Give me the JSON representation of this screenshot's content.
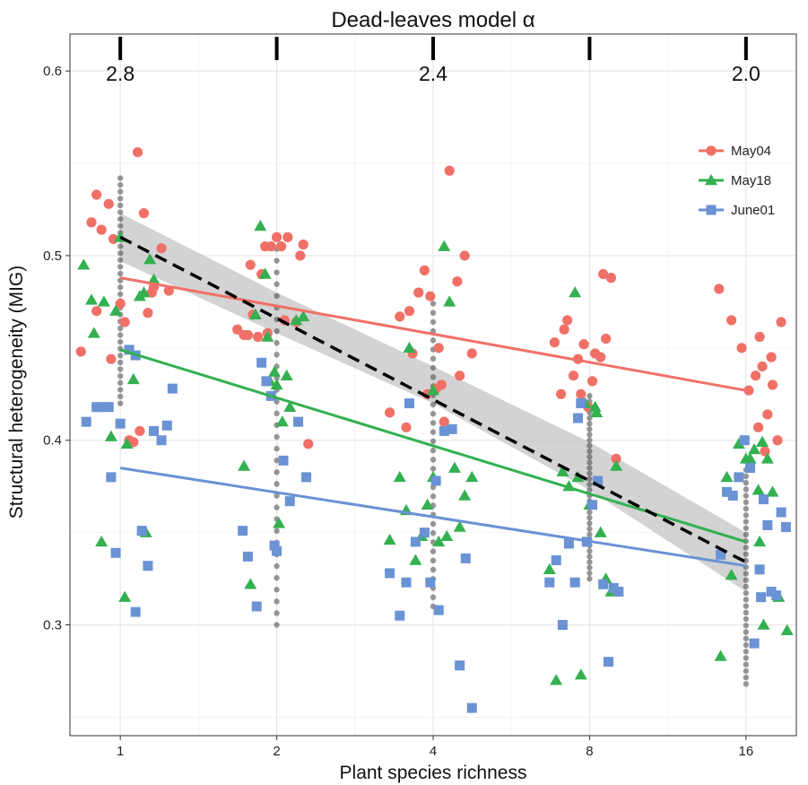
{
  "chart_data": {
    "type": "scatter",
    "title": "Dead-leaves model α",
    "xlabel": "Plant species richness",
    "ylabel": "Structural heterogeneity (MIG)",
    "x_scale": "log2",
    "xlim": [
      0.8,
      20
    ],
    "ylim": [
      0.24,
      0.62
    ],
    "x_ticks": [
      1,
      2,
      4,
      8,
      16
    ],
    "x_tick_labels": [
      "1",
      "2",
      "4",
      "8",
      "16"
    ],
    "y_ticks": [
      0.3,
      0.4,
      0.5,
      0.6
    ],
    "y_tick_labels": [
      "0.3",
      "0.4",
      "0.5",
      "0.6"
    ],
    "top_axis": {
      "label": "Dead-leaves model α",
      "tick_labels": [
        "2.8",
        "2.4",
        "2.0"
      ],
      "labeled_at_x": [
        1,
        4,
        16
      ],
      "all_ticks_at_x": [
        1,
        2,
        4,
        8,
        16
      ]
    },
    "grid": true,
    "background": "#ffffff",
    "legend": {
      "position": "top-right",
      "entries": [
        "May04",
        "May18",
        "June01"
      ]
    },
    "colors": {
      "May04": "#f07068",
      "May18": "#33b050",
      "June01": "#6a92d4",
      "overall_points": "#444444",
      "overall_fit": "#000000",
      "ribbon": "#c8c8c8"
    },
    "series": [
      {
        "name": "May04",
        "marker": "circle",
        "x": [
          0.84,
          0.88,
          0.9,
          0.92,
          0.95,
          0.97,
          1.0,
          1.02,
          1.04,
          1.06,
          1.08,
          1.11,
          1.13,
          1.16,
          1.2,
          1.24,
          0.96,
          0.9,
          1.09,
          1.15,
          1.68,
          1.73,
          1.76,
          1.8,
          1.84,
          1.87,
          1.92,
          1.95,
          2.0,
          2.04,
          2.1,
          2.18,
          2.25,
          2.3,
          1.78,
          1.9,
          2.07,
          2.22,
          3.3,
          3.45,
          3.55,
          3.65,
          3.75,
          3.85,
          3.95,
          4.05,
          4.1,
          4.2,
          4.3,
          4.45,
          4.6,
          4.75,
          3.6,
          3.9,
          4.15,
          4.5,
          6.85,
          7.05,
          7.25,
          7.45,
          7.6,
          7.8,
          7.95,
          8.2,
          8.4,
          8.6,
          8.8,
          9.0,
          7.15,
          7.7,
          8.1,
          8.5,
          14.2,
          15.0,
          15.7,
          16.2,
          16.7,
          17.2,
          17.6,
          18.0,
          18.4,
          16.9,
          17.4,
          17.9,
          18.7,
          17.0
        ],
        "y": [
          0.448,
          0.518,
          0.533,
          0.514,
          0.528,
          0.509,
          0.474,
          0.464,
          0.4,
          0.399,
          0.556,
          0.523,
          0.469,
          0.483,
          0.504,
          0.481,
          0.444,
          0.47,
          0.405,
          0.48,
          0.46,
          0.457,
          0.457,
          0.468,
          0.456,
          0.49,
          0.458,
          0.505,
          0.51,
          0.505,
          0.51,
          0.464,
          0.506,
          0.398,
          0.495,
          0.505,
          0.465,
          0.5,
          0.415,
          0.467,
          0.407,
          0.447,
          0.48,
          0.492,
          0.478,
          0.428,
          0.45,
          0.41,
          0.546,
          0.486,
          0.5,
          0.447,
          0.47,
          0.425,
          0.43,
          0.435,
          0.453,
          0.425,
          0.465,
          0.435,
          0.444,
          0.452,
          0.418,
          0.447,
          0.445,
          0.455,
          0.488,
          0.39,
          0.46,
          0.425,
          0.432,
          0.49,
          0.482,
          0.465,
          0.45,
          0.427,
          0.435,
          0.44,
          0.414,
          0.43,
          0.4,
          0.407,
          0.394,
          0.445,
          0.464,
          0.456
        ],
        "fit_line": {
          "x": [
            1,
            16
          ],
          "y": [
            0.488,
            0.427
          ]
        }
      },
      {
        "name": "May18",
        "marker": "triangle",
        "x": [
          0.85,
          0.88,
          0.89,
          0.93,
          0.96,
          0.98,
          1.0,
          1.03,
          1.06,
          1.09,
          1.11,
          1.14,
          1.16,
          1.12,
          0.92,
          1.02,
          1.73,
          1.78,
          1.82,
          1.86,
          1.9,
          1.94,
          1.98,
          2.02,
          2.05,
          2.09,
          2.12,
          2.18,
          2.25,
          1.92,
          2.0,
          3.3,
          3.45,
          3.55,
          3.7,
          3.8,
          3.9,
          4.0,
          4.1,
          4.2,
          4.3,
          4.4,
          4.6,
          4.75,
          4.5,
          3.6,
          4.0,
          4.25,
          6.7,
          6.9,
          7.1,
          7.3,
          7.5,
          7.7,
          7.85,
          8.0,
          8.2,
          8.4,
          8.6,
          8.8,
          9.0,
          8.25,
          7.6,
          14.3,
          14.7,
          15.0,
          15.5,
          16.0,
          16.3,
          16.6,
          17.0,
          17.3,
          17.6,
          18.0,
          18.5,
          19.2,
          16.9,
          17.2
        ],
        "y": [
          0.495,
          0.476,
          0.458,
          0.475,
          0.402,
          0.47,
          0.51,
          0.398,
          0.433,
          0.478,
          0.48,
          0.498,
          0.487,
          0.35,
          0.345,
          0.315,
          0.386,
          0.322,
          0.468,
          0.516,
          0.49,
          0.432,
          0.437,
          0.355,
          0.41,
          0.435,
          0.418,
          0.465,
          0.467,
          0.456,
          0.43,
          0.346,
          0.38,
          0.362,
          0.335,
          0.348,
          0.365,
          0.38,
          0.345,
          0.505,
          0.475,
          0.385,
          0.37,
          0.38,
          0.353,
          0.45,
          0.427,
          0.348,
          0.33,
          0.27,
          0.383,
          0.375,
          0.48,
          0.273,
          0.42,
          0.365,
          0.418,
          0.35,
          0.325,
          0.318,
          0.386,
          0.415,
          0.38,
          0.283,
          0.38,
          0.327,
          0.398,
          0.39,
          0.39,
          0.395,
          0.345,
          0.3,
          0.39,
          0.372,
          0.315,
          0.297,
          0.373,
          0.399
        ],
        "fit_line": {
          "x": [
            1,
            16
          ],
          "y": [
            0.449,
            0.345
          ]
        }
      },
      {
        "name": "June01",
        "marker": "square",
        "x": [
          0.86,
          0.9,
          0.92,
          0.95,
          0.98,
          1.0,
          1.04,
          1.07,
          1.1,
          1.13,
          1.16,
          1.2,
          1.23,
          1.26,
          1.07,
          0.96,
          1.72,
          1.76,
          1.83,
          1.87,
          1.91,
          1.95,
          2.0,
          2.06,
          2.12,
          2.2,
          2.28,
          1.98,
          3.3,
          3.45,
          3.55,
          3.7,
          3.85,
          3.95,
          4.05,
          4.2,
          4.35,
          4.5,
          4.62,
          4.75,
          3.6,
          4.1,
          6.7,
          6.9,
          7.1,
          7.3,
          7.5,
          7.7,
          7.9,
          8.1,
          8.3,
          8.5,
          8.7,
          8.9,
          9.1,
          7.6,
          14.3,
          14.7,
          15.1,
          15.5,
          15.9,
          16.3,
          16.6,
          17.0,
          17.3,
          17.6,
          17.9,
          18.3,
          18.7,
          19.1,
          17.1
        ],
        "y": [
          0.41,
          0.418,
          0.418,
          0.418,
          0.339,
          0.409,
          0.449,
          0.307,
          0.351,
          0.332,
          0.405,
          0.4,
          0.408,
          0.428,
          0.446,
          0.38,
          0.351,
          0.337,
          0.31,
          0.442,
          0.432,
          0.424,
          0.34,
          0.389,
          0.367,
          0.41,
          0.38,
          0.343,
          0.328,
          0.305,
          0.323,
          0.345,
          0.35,
          0.323,
          0.378,
          0.405,
          0.406,
          0.278,
          0.336,
          0.255,
          0.42,
          0.308,
          0.323,
          0.335,
          0.3,
          0.344,
          0.323,
          0.42,
          0.345,
          0.365,
          0.378,
          0.322,
          0.28,
          0.32,
          0.318,
          0.412,
          0.338,
          0.372,
          0.37,
          0.38,
          0.4,
          0.385,
          0.29,
          0.33,
          0.368,
          0.354,
          0.318,
          0.316,
          0.361,
          0.353,
          0.315
        ],
        "fit_line": {
          "x": [
            1,
            16
          ],
          "y": [
            0.385,
            0.332
          ]
        }
      }
    ],
    "overall": {
      "points_x": [
        1,
        2,
        4,
        8,
        16
      ],
      "points_y_range": [
        [
          0.42,
          0.542
        ],
        [
          0.3,
          0.51
        ],
        [
          0.31,
          0.474
        ],
        [
          0.325,
          0.424
        ],
        [
          0.268,
          0.384
        ]
      ],
      "fit_line": {
        "x": [
          1,
          16
        ],
        "y": [
          0.51,
          0.334
        ]
      },
      "ribbon": {
        "x": [
          1,
          2,
          4,
          8,
          16
        ],
        "upper": [
          0.523,
          0.48,
          0.44,
          0.399,
          0.35
        ],
        "lower": [
          0.497,
          0.458,
          0.42,
          0.373,
          0.318
        ]
      }
    }
  }
}
